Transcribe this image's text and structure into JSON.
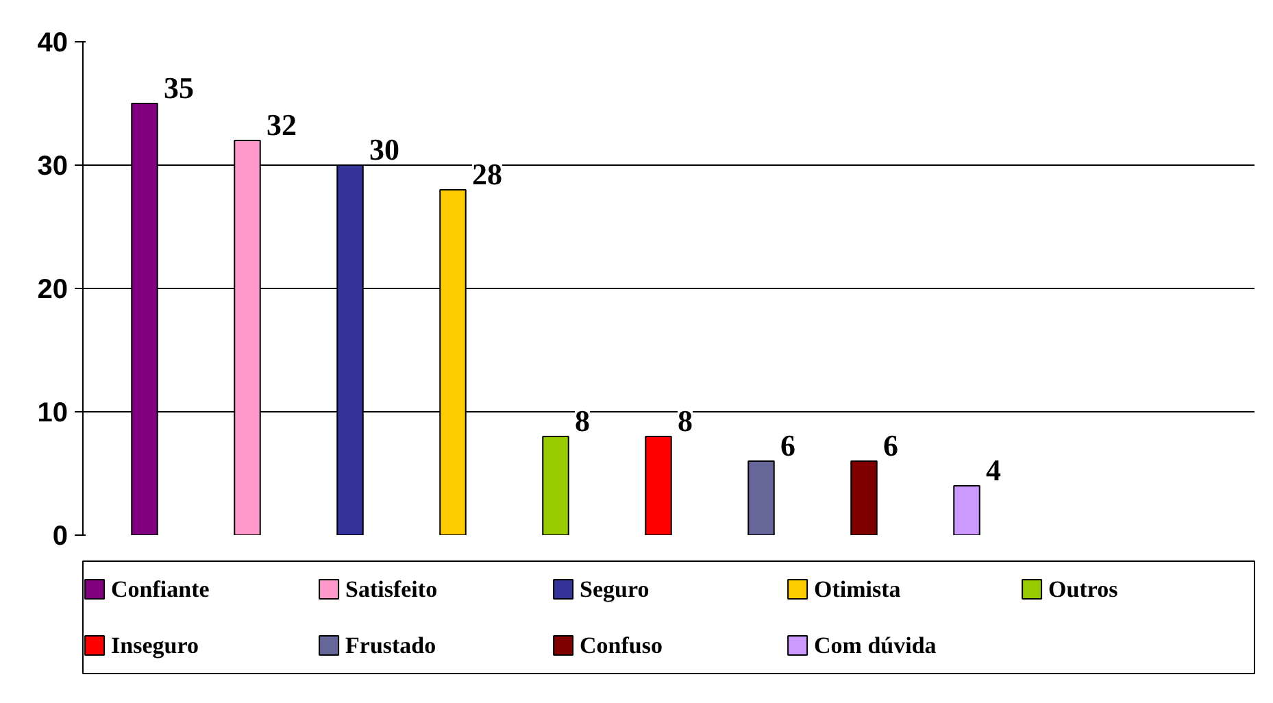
{
  "chart_data": {
    "type": "bar",
    "categories": [
      null,
      null,
      null,
      null,
      null,
      null,
      null,
      null,
      null
    ],
    "series": [
      {
        "name": "Confiante",
        "color": "#800080",
        "values": [
          35,
          null,
          null,
          null,
          null,
          null,
          null,
          null,
          null
        ]
      },
      {
        "name": "Satisfeito",
        "color": "#ff99cc",
        "values": [
          null,
          32,
          null,
          null,
          null,
          null,
          null,
          null,
          null
        ]
      },
      {
        "name": "Seguro",
        "color": "#333399",
        "values": [
          null,
          null,
          30,
          null,
          null,
          null,
          null,
          null,
          null
        ]
      },
      {
        "name": "Otimista",
        "color": "#ffcc00",
        "values": [
          null,
          null,
          null,
          28,
          null,
          null,
          null,
          null,
          null
        ]
      },
      {
        "name": "Outros",
        "color": "#99cc00",
        "values": [
          null,
          null,
          null,
          null,
          8,
          null,
          null,
          null,
          null
        ]
      },
      {
        "name": "Inseguro",
        "color": "#ff0000",
        "values": [
          null,
          null,
          null,
          null,
          null,
          8,
          null,
          null,
          null
        ]
      },
      {
        "name": "Frustado",
        "color": "#666699",
        "values": [
          null,
          null,
          null,
          null,
          null,
          null,
          6,
          null,
          null
        ]
      },
      {
        "name": "Confuso",
        "color": "#800000",
        "values": [
          null,
          null,
          null,
          null,
          null,
          null,
          null,
          6,
          null
        ]
      },
      {
        "name": "Com dúvida",
        "color": "#cc99ff",
        "values": [
          null,
          null,
          null,
          null,
          null,
          null,
          null,
          null,
          4
        ]
      }
    ],
    "ylim": [
      0,
      40
    ],
    "yticks": [
      0,
      10,
      20,
      30,
      40
    ],
    "stacked": true,
    "grid": "y",
    "legend": "bottom",
    "data_labels": true
  }
}
